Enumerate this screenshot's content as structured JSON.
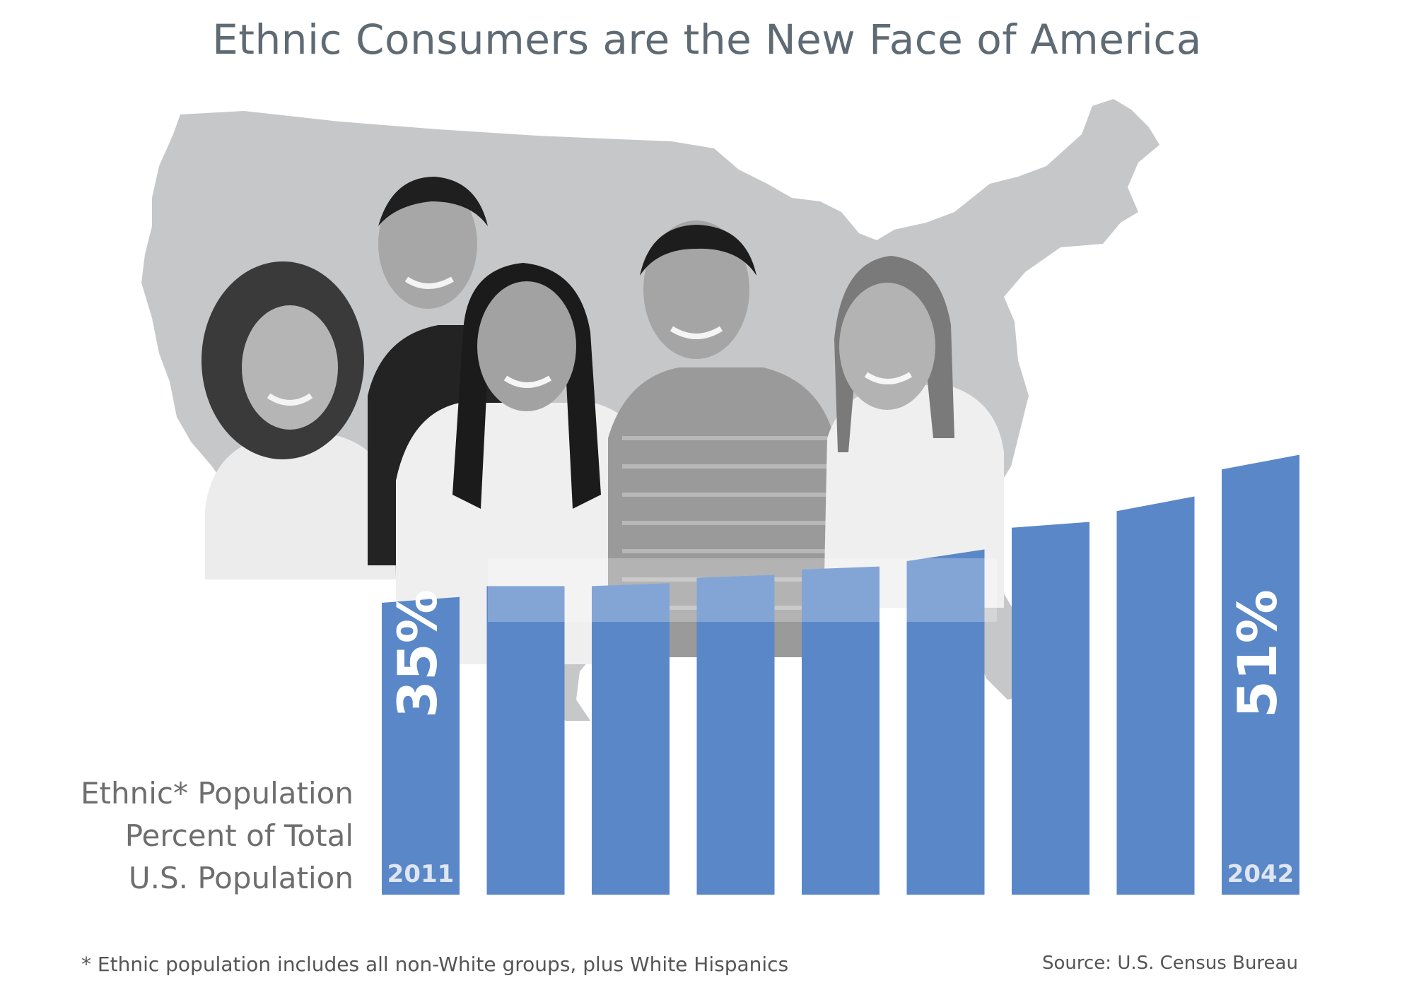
{
  "title": "Ethnic Consumers are the New Face of America",
  "ylabel_lines": [
    "Ethnic* Population",
    "Percent of Total",
    "U.S. Population"
  ],
  "footnote": "* Ethnic population includes all non-White groups, plus White Hispanics",
  "source": "Source: U.S. Census Bureau",
  "colors": {
    "bar": "#5a87c8",
    "map": "#c6c7c8",
    "title": "#5f6b74",
    "bar_text": "#ffffff",
    "year_text": "#dfe6f1"
  },
  "illustration": {
    "map": "us-map-silhouette",
    "people": [
      "person-1",
      "person-2",
      "person-3",
      "person-4",
      "person-5"
    ]
  },
  "chart_data": {
    "type": "bar",
    "categories": [
      "2011",
      "",
      "",
      "",
      "",
      "",
      "",
      "",
      "2042"
    ],
    "values": [
      35,
      37,
      37,
      38,
      39,
      40,
      44,
      46,
      51
    ],
    "data_labels": [
      "35%",
      "",
      "",
      "",
      "",
      "",
      "",
      "",
      "51%"
    ],
    "title": "Ethnic Consumers are the New Face of America",
    "ylabel": "Ethnic* Population Percent of Total U.S. Population",
    "grid": false,
    "legend": "none"
  }
}
